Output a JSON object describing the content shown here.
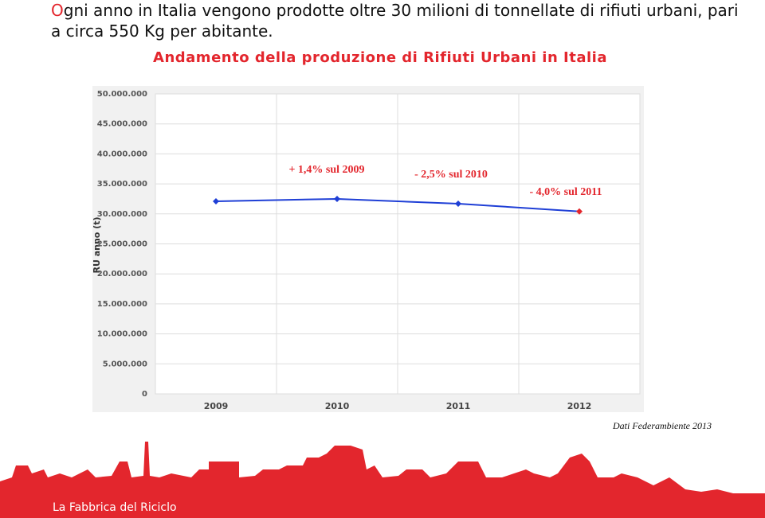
{
  "header": {
    "initial": "O",
    "text": "gni anno in Italia vengono prodotte oltre 30 milioni di tonnellate di rifiuti urbani, pari a circa 550 Kg per abitante."
  },
  "chart_data": {
    "type": "line",
    "title": "Andamento della produzione di Rifiuti Urbani in Italia",
    "y_label": "RU anno (t)",
    "categories": [
      "2009",
      "2010",
      "2011",
      "2012"
    ],
    "series": [
      {
        "name": "RU",
        "color": "#1f3fd6",
        "point_colors": [
          "#1f3fd6",
          "#1f3fd6",
          "#1f3fd6",
          "#e3262d"
        ],
        "values": [
          32100000,
          32500000,
          31700000,
          30400000
        ]
      }
    ],
    "annotations": [
      "+ 1,4% sul 2009",
      "- 2,5% sul 2010",
      "- 4,0% sul 2011"
    ],
    "annotation_color": "#e3262d",
    "ylim": [
      0,
      50000000
    ],
    "yticks": [
      0,
      {
        "value": 5000000,
        "label": "5.000.000"
      },
      {
        "value": 10000000,
        "label": "10.000.000"
      },
      {
        "value": 15000000,
        "label": "15.000.000"
      },
      {
        "value": 20000000,
        "label": "20.000.000"
      },
      {
        "value": 25000000,
        "label": "25.000.000"
      },
      {
        "value": 30000000,
        "label": "30.000.000"
      },
      {
        "value": 35000000,
        "label": "35.000.000"
      },
      {
        "value": 40000000,
        "label": "40.000.000"
      },
      {
        "value": 45000000,
        "label": "45.000.000"
      },
      {
        "value": 50000000,
        "label": "50.000.000"
      }
    ],
    "grid": true
  },
  "source": "Dati Federambiente 2013",
  "footer": "La Fabbrica del Riciclo"
}
